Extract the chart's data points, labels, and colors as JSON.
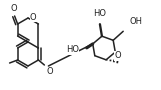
{
  "bg_color": "#ffffff",
  "line_color": "#222222",
  "text_color": "#222222",
  "lw": 1.1,
  "fs": 5.5,
  "figsize": [
    1.61,
    0.9
  ],
  "dpi": 100
}
